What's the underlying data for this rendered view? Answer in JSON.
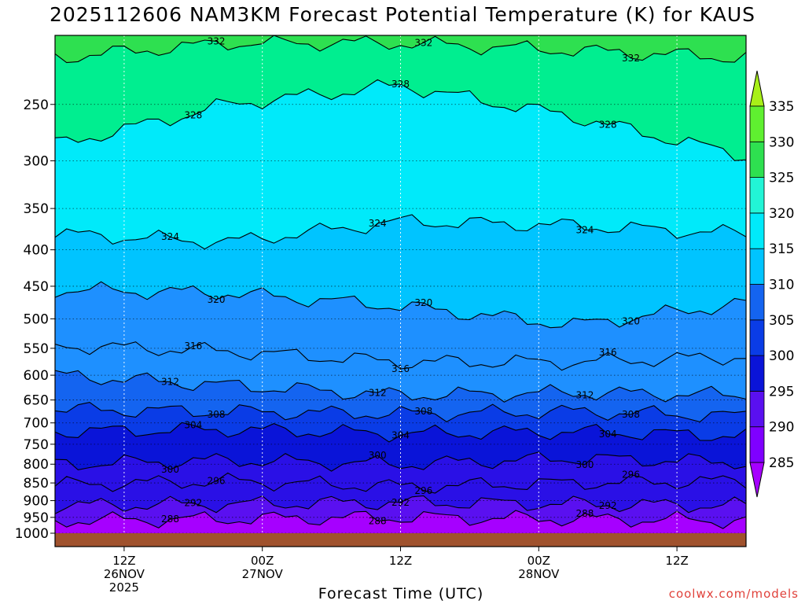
{
  "chart_data": {
    "type": "heatmap",
    "title": "2025112606 NAM3KM Forecast Potential Temperature (K) for KAUS",
    "xlabel": "Forecast Time (UTC)",
    "ylabel": "",
    "x_ticks": [
      {
        "line1": "12Z",
        "line2": "26NOV",
        "line3": "2025",
        "hour": 6
      },
      {
        "line1": "00Z",
        "line2": "27NOV",
        "line3": "",
        "hour": 18
      },
      {
        "line1": "12Z",
        "line2": "",
        "line3": "",
        "hour": 30
      },
      {
        "line1": "00Z",
        "line2": "28NOV",
        "line3": "",
        "hour": 42
      },
      {
        "line1": "12Z",
        "line2": "",
        "line3": "",
        "hour": 54
      }
    ],
    "xlim": [
      0,
      60
    ],
    "y_ticks": [
      250,
      300,
      350,
      400,
      450,
      500,
      550,
      600,
      650,
      700,
      750,
      800,
      850,
      900,
      950,
      1000
    ],
    "ylim": [
      1000,
      200
    ],
    "y_scale": "log-pressure",
    "grid": true,
    "colorbar": {
      "levels": [
        285,
        290,
        295,
        300,
        305,
        310,
        315,
        320,
        325,
        330,
        335
      ],
      "colors": [
        "#a600ff",
        "#7f00ff",
        "#5a10f0",
        "#2a10e6",
        "#0a14d8",
        "#0a3ce6",
        "#1464f0",
        "#1e90ff",
        "#00c4ff",
        "#00eafa",
        "#22f5d6",
        "#00ee90",
        "#2ee050",
        "#5ff030",
        "#a8f018"
      ]
    },
    "fill_levels": [
      {
        "theta": 288,
        "color": "#7f00ff"
      },
      {
        "theta": 290,
        "color": "#5a10f0"
      },
      {
        "theta": 295,
        "color": "#2a10e6"
      },
      {
        "theta": 300,
        "color": "#0a14d8"
      },
      {
        "theta": 305,
        "color": "#0a3ce6"
      },
      {
        "theta": 310,
        "color": "#1464f0"
      },
      {
        "theta": 315,
        "color": "#1e90ff"
      },
      {
        "theta": 320,
        "color": "#00c4ff"
      },
      {
        "theta": 325,
        "color": "#00eafa"
      },
      {
        "theta": 330,
        "color": "#00ee90"
      },
      {
        "theta": 335,
        "color": "#2ee050"
      }
    ],
    "contours": [
      {
        "theta": 288,
        "label": "288",
        "p": [
          960,
          955,
          950,
          955,
          960
        ]
      },
      {
        "theta": 292,
        "label": "292",
        "p": [
          915,
          910,
          905,
          910,
          915
        ]
      },
      {
        "theta": 296,
        "label": "296",
        "p": [
          855,
          845,
          860,
          850,
          845
        ]
      },
      {
        "theta": 300,
        "label": "300",
        "p": [
          800,
          790,
          800,
          785,
          795
        ]
      },
      {
        "theta": 304,
        "label": "304",
        "p": [
          720,
          715,
          725,
          720,
          730
        ]
      },
      {
        "theta": 308,
        "label": "308",
        "p": [
          670,
          675,
          680,
          675,
          685
        ]
      },
      {
        "theta": 312,
        "label": "312",
        "p": [
          600,
          620,
          640,
          635,
          640
        ]
      },
      {
        "theta": 316,
        "label": "316",
        "p": [
          545,
          555,
          575,
          575,
          565
        ]
      },
      {
        "theta": 320,
        "label": "320",
        "p": [
          455,
          460,
          480,
          510,
          475
        ]
      },
      {
        "theta": 324,
        "label": "324",
        "p": [
          380,
          390,
          365,
          370,
          380
        ]
      },
      {
        "theta": 328,
        "label": "328",
        "p": [
          285,
          250,
          235,
          260,
          295
        ]
      },
      {
        "theta": 332,
        "label": "332",
        "p": [
          215,
          205,
          205,
          210,
          215
        ]
      }
    ],
    "surface_color": "#a0522d"
  },
  "credit": "coolwx.com/models"
}
